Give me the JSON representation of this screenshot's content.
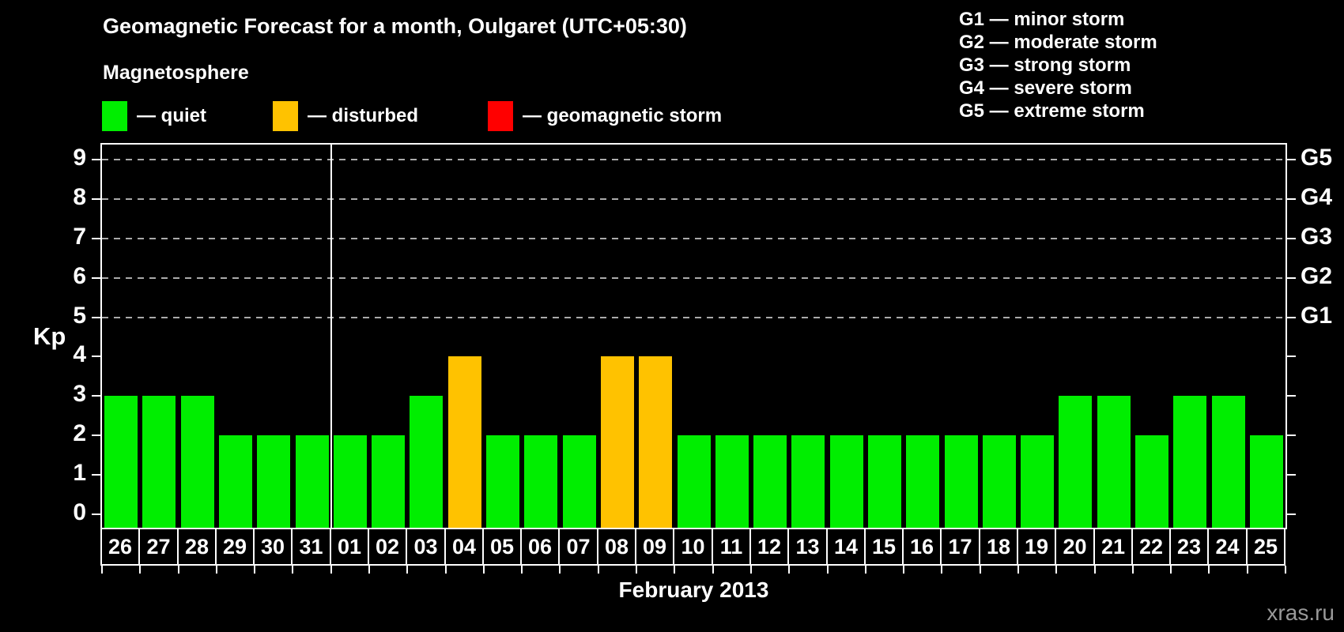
{
  "header": {
    "title": "Geomagnetic Forecast for a month, Oulgaret (UTC+05:30)",
    "subtitle": "Magnetosphere"
  },
  "legend": {
    "items": [
      {
        "label": "— quiet",
        "status": "quiet",
        "color": "#00EE00"
      },
      {
        "label": "— disturbed",
        "status": "disturbed",
        "color": "#FFC200"
      },
      {
        "label": "— geomagnetic storm",
        "status": "storm",
        "color": "#FF0000"
      }
    ]
  },
  "g_legend": {
    "lines": [
      "G1 — minor storm",
      "G2 — moderate storm",
      "G3 — strong storm",
      "G4 — severe storm",
      "G5 — extreme storm"
    ]
  },
  "chart_data": {
    "type": "bar",
    "title": "Geomagnetic Forecast for a month, Oulgaret (UTC+05:30)",
    "xlabel": "February 2013",
    "ylabel": "Kp",
    "categories": [
      "26",
      "27",
      "28",
      "29",
      "30",
      "31",
      "01",
      "02",
      "03",
      "04",
      "05",
      "06",
      "07",
      "08",
      "09",
      "10",
      "11",
      "12",
      "13",
      "14",
      "15",
      "16",
      "17",
      "18",
      "19",
      "20",
      "21",
      "22",
      "23",
      "24",
      "25"
    ],
    "values": [
      3,
      3,
      3,
      2,
      2,
      2,
      2,
      2,
      3,
      4,
      2,
      2,
      2,
      4,
      4,
      2,
      2,
      2,
      2,
      2,
      2,
      2,
      2,
      2,
      2,
      3,
      3,
      2,
      3,
      3,
      2
    ],
    "statuses": [
      "quiet",
      "quiet",
      "quiet",
      "quiet",
      "quiet",
      "quiet",
      "quiet",
      "quiet",
      "quiet",
      "disturbed",
      "quiet",
      "quiet",
      "quiet",
      "disturbed",
      "disturbed",
      "quiet",
      "quiet",
      "quiet",
      "quiet",
      "quiet",
      "quiet",
      "quiet",
      "quiet",
      "quiet",
      "quiet",
      "quiet",
      "quiet",
      "quiet",
      "quiet",
      "quiet",
      "quiet"
    ],
    "status_colors": {
      "quiet": "#00EE00",
      "disturbed": "#FFC200",
      "storm": "#FF0000"
    },
    "ylim": [
      -0.34,
      9.38
    ],
    "yticks": [
      0,
      1,
      2,
      3,
      4,
      5,
      6,
      7,
      8,
      9
    ],
    "gridlines_at": [
      5,
      6,
      7,
      8,
      9
    ],
    "right_axis": [
      {
        "label": "G5",
        "kp": 9
      },
      {
        "label": "G4",
        "kp": 8
      },
      {
        "label": "G3",
        "kp": 7
      },
      {
        "label": "G2",
        "kp": 6
      },
      {
        "label": "G1",
        "kp": 5
      }
    ],
    "month_divider_slot_index": 6,
    "legend_position": "top",
    "grid": "dashed-horizontal"
  },
  "footer": {
    "month_label": "February 2013",
    "watermark": "xras.ru"
  }
}
